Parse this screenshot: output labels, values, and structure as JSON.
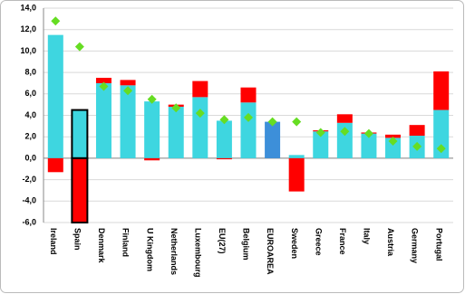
{
  "chart_data": {
    "type": "stacked-bar-marker",
    "categories": [
      "Ireland",
      "Spain",
      "Denmark",
      "Finland",
      "U Kingdom",
      "Netherlands",
      "Luxembourg",
      "EU(27)",
      "Belgium",
      "EUROAREA",
      "Sweden",
      "Greece",
      "France",
      "Italy",
      "Austria",
      "Germany",
      "Portugal"
    ],
    "series": [
      {
        "color": "#3ed6e0",
        "kind": "bar",
        "colors": [
          "#3ed6e0",
          "#3ed6e0",
          "#3ed6e0",
          "#3ed6e0",
          "#3ed6e0",
          "#3ed6e0",
          "#3ed6e0",
          "#3ed6e0",
          "#3ed6e0",
          "#3d8fd9",
          "#3ed6e0",
          "#3ed6e0",
          "#3ed6e0",
          "#3ed6e0",
          "#3ed6e0",
          "#3ed6e0",
          "#3ed6e0"
        ],
        "values": [
          11.5,
          4.5,
          7.0,
          6.8,
          5.3,
          4.8,
          5.7,
          3.5,
          5.2,
          3.4,
          0.3,
          2.5,
          3.3,
          2.3,
          1.9,
          2.1,
          4.5
        ]
      },
      {
        "color": "#ff0000",
        "kind": "bar",
        "values": [
          -1.3,
          -6.0,
          0.5,
          0.5,
          -0.2,
          0.2,
          1.5,
          -0.1,
          1.4,
          null,
          -3.1,
          0.1,
          0.8,
          0.1,
          0.3,
          1.0,
          3.6
        ]
      },
      {
        "color": "#66dd22",
        "kind": "marker",
        "values": [
          12.8,
          10.4,
          6.7,
          6.3,
          5.5,
          4.7,
          4.2,
          3.6,
          3.8,
          3.4,
          3.4,
          2.4,
          2.5,
          2.3,
          1.6,
          1.1,
          0.9
        ]
      }
    ],
    "outline_category": "Spain",
    "ylim": [
      -6,
      14
    ],
    "yticks": [
      {
        "value": -6,
        "label": "-6,0"
      },
      {
        "value": -4,
        "label": "-4,0"
      },
      {
        "value": -2,
        "label": "-2,0"
      },
      {
        "value": 0,
        "label": "0,0"
      },
      {
        "value": 2,
        "label": "2,0"
      },
      {
        "value": 4,
        "label": "4,0"
      },
      {
        "value": 6,
        "label": "6,0"
      },
      {
        "value": 8,
        "label": "8,0"
      },
      {
        "value": 10,
        "label": "10,0"
      },
      {
        "value": 12,
        "label": "12,0"
      },
      {
        "value": 14,
        "label": "14,0"
      }
    ],
    "grid": true
  }
}
